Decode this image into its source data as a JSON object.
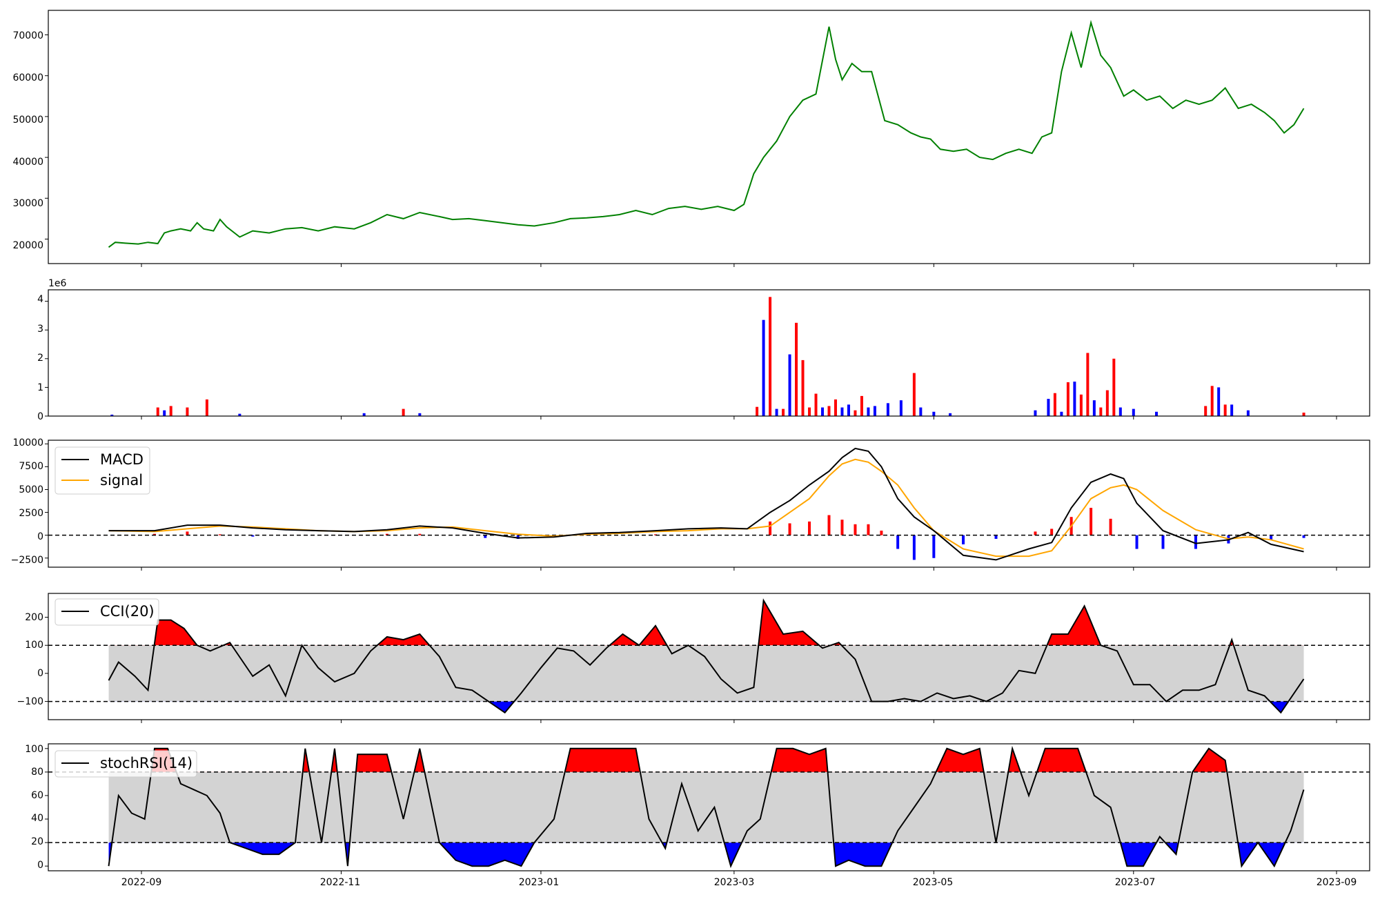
{
  "colors": {
    "price": "#008000",
    "up": "#ff0000",
    "down": "#0000ff",
    "macd": "#000000",
    "signal": "#ffa500",
    "band": "#d3d3d3",
    "frame": "#000000"
  },
  "x_ticks": [
    "2022-09",
    "2022-11",
    "2023-01",
    "2023-03",
    "2023-05",
    "2023-07",
    "2023-09"
  ],
  "chart_data": [
    {
      "type": "line",
      "panel": "price",
      "x_range": [
        "2022-08-01",
        "2023-09-15"
      ],
      "ylim": [
        14000,
        76000
      ],
      "y_ticks": [
        "20000",
        "30000",
        "40000",
        "50000",
        "60000",
        "70000"
      ],
      "series": [
        {
          "color": "#008000",
          "x": [
            "2022-08-22",
            "2022-08-24",
            "2022-08-27",
            "2022-08-31",
            "2022-09-03",
            "2022-09-06",
            "2022-09-08",
            "2022-09-10",
            "2022-09-13",
            "2022-09-16",
            "2022-09-18",
            "2022-09-20",
            "2022-09-23",
            "2022-09-25",
            "2022-09-27",
            "2022-10-01",
            "2022-10-05",
            "2022-10-10",
            "2022-10-15",
            "2022-10-20",
            "2022-10-25",
            "2022-10-30",
            "2022-11-05",
            "2022-11-10",
            "2022-11-15",
            "2022-11-20",
            "2022-11-25",
            "2022-12-01",
            "2022-12-05",
            "2022-12-10",
            "2022-12-15",
            "2022-12-20",
            "2022-12-25",
            "2022-12-30",
            "2023-01-05",
            "2023-01-10",
            "2023-01-15",
            "2023-01-20",
            "2023-01-25",
            "2023-01-30",
            "2023-02-04",
            "2023-02-09",
            "2023-02-14",
            "2023-02-19",
            "2023-02-24",
            "2023-03-01",
            "2023-03-04",
            "2023-03-07",
            "2023-03-10",
            "2023-03-14",
            "2023-03-18",
            "2023-03-22",
            "2023-03-26",
            "2023-03-30",
            "2023-04-01",
            "2023-04-03",
            "2023-04-06",
            "2023-04-09",
            "2023-04-12",
            "2023-04-16",
            "2023-04-20",
            "2023-04-24",
            "2023-04-27",
            "2023-04-30",
            "2023-05-03",
            "2023-05-07",
            "2023-05-11",
            "2023-05-15",
            "2023-05-19",
            "2023-05-23",
            "2023-05-27",
            "2023-05-31",
            "2023-06-03",
            "2023-06-06",
            "2023-06-09",
            "2023-06-12",
            "2023-06-15",
            "2023-06-18",
            "2023-06-21",
            "2023-06-24",
            "2023-06-28",
            "2023-07-01",
            "2023-07-05",
            "2023-07-09",
            "2023-07-13",
            "2023-07-17",
            "2023-07-21",
            "2023-07-25",
            "2023-07-29",
            "2023-08-02",
            "2023-08-06",
            "2023-08-10",
            "2023-08-13",
            "2023-08-16",
            "2023-08-19",
            "2023-08-22"
          ],
          "y": [
            18000,
            19200,
            19000,
            18800,
            19200,
            18900,
            21500,
            22000,
            22500,
            22000,
            24000,
            22500,
            22000,
            24800,
            23000,
            20500,
            22000,
            21500,
            22500,
            22800,
            22000,
            23000,
            22500,
            24000,
            26000,
            25000,
            26500,
            25500,
            24800,
            25000,
            24500,
            24000,
            23500,
            23200,
            24000,
            25000,
            25200,
            25500,
            26000,
            27000,
            26000,
            27500,
            28000,
            27300,
            28000,
            27000,
            28500,
            36000,
            40000,
            44000,
            50000,
            54000,
            55500,
            72000,
            64000,
            59000,
            63000,
            61000,
            61000,
            49000,
            48000,
            46000,
            45000,
            44500,
            42000,
            41500,
            42000,
            40000,
            39500,
            41000,
            42000,
            41000,
            45000,
            46000,
            61000,
            70500,
            62000,
            73000,
            65000,
            62000,
            55000,
            56500,
            54000,
            55000,
            52000,
            54000,
            53000,
            54000,
            57000,
            52000,
            53000,
            51000,
            49000,
            46000,
            48000,
            52000
          ]
        }
      ]
    },
    {
      "type": "bar",
      "panel": "volume",
      "multiplier_label": "1e6",
      "ylim": [
        0,
        4.4
      ],
      "y_ticks": [
        "0",
        "1",
        "2",
        "3",
        "4"
      ],
      "x": [
        "2022-08-23",
        "2022-09-06",
        "2022-09-08",
        "2022-09-10",
        "2022-09-15",
        "2022-09-21",
        "2022-10-01",
        "2022-11-08",
        "2022-11-20",
        "2022-11-25",
        "2023-03-08",
        "2023-03-10",
        "2023-03-12",
        "2023-03-14",
        "2023-03-16",
        "2023-03-18",
        "2023-03-20",
        "2023-03-22",
        "2023-03-24",
        "2023-03-26",
        "2023-03-28",
        "2023-03-30",
        "2023-04-01",
        "2023-04-03",
        "2023-04-05",
        "2023-04-07",
        "2023-04-09",
        "2023-04-11",
        "2023-04-13",
        "2023-04-17",
        "2023-04-21",
        "2023-04-25",
        "2023-04-27",
        "2023-05-01",
        "2023-05-06",
        "2023-06-01",
        "2023-06-05",
        "2023-06-07",
        "2023-06-09",
        "2023-06-11",
        "2023-06-13",
        "2023-06-15",
        "2023-06-17",
        "2023-06-19",
        "2023-06-21",
        "2023-06-23",
        "2023-06-25",
        "2023-06-27",
        "2023-07-01",
        "2023-07-08",
        "2023-07-23",
        "2023-07-25",
        "2023-07-27",
        "2023-07-29",
        "2023-07-31",
        "2023-08-05",
        "2023-08-22"
      ],
      "values": [
        0.05,
        0.3,
        0.2,
        0.35,
        0.3,
        0.58,
        0.08,
        0.1,
        0.25,
        0.1,
        0.32,
        3.35,
        4.15,
        0.25,
        0.25,
        2.15,
        3.25,
        1.95,
        0.3,
        0.78,
        0.3,
        0.35,
        0.58,
        0.3,
        0.4,
        0.2,
        0.7,
        0.3,
        0.35,
        0.45,
        0.55,
        1.5,
        0.3,
        0.15,
        0.1,
        0.2,
        0.6,
        0.8,
        0.15,
        1.18,
        1.2,
        0.75,
        2.2,
        0.55,
        0.3,
        0.9,
        2.0,
        0.3,
        0.25,
        0.15,
        0.35,
        1.05,
        1.0,
        0.4,
        0.4,
        0.2,
        0.12
      ],
      "colors": [
        "b",
        "r",
        "b",
        "r",
        "r",
        "r",
        "b",
        "b",
        "r",
        "b",
        "r",
        "b",
        "r",
        "b",
        "r",
        "b",
        "r",
        "r",
        "r",
        "r",
        "b",
        "r",
        "r",
        "b",
        "b",
        "r",
        "r",
        "b",
        "b",
        "b",
        "b",
        "r",
        "b",
        "b",
        "b",
        "b",
        "b",
        "r",
        "b",
        "r",
        "b",
        "r",
        "r",
        "b",
        "r",
        "r",
        "r",
        "b",
        "b",
        "b",
        "r",
        "r",
        "b",
        "r",
        "b",
        "b",
        "r"
      ]
    },
    {
      "type": "line",
      "panel": "macd",
      "ylim": [
        -3500,
        10400
      ],
      "y_ticks": [
        "−2500",
        "0",
        "2500",
        "5000",
        "7500",
        "10000"
      ],
      "hline": 0,
      "legend": [
        "MACD",
        "signal"
      ],
      "x": [
        "2022-08-22",
        "2022-09-05",
        "2022-09-15",
        "2022-09-25",
        "2022-10-05",
        "2022-10-15",
        "2022-10-25",
        "2022-11-05",
        "2022-11-15",
        "2022-11-25",
        "2022-12-05",
        "2022-12-15",
        "2022-12-25",
        "2023-01-05",
        "2023-01-15",
        "2023-01-25",
        "2023-02-05",
        "2023-02-15",
        "2023-02-25",
        "2023-03-05",
        "2023-03-12",
        "2023-03-18",
        "2023-03-24",
        "2023-03-30",
        "2023-04-03",
        "2023-04-07",
        "2023-04-11",
        "2023-04-15",
        "2023-04-20",
        "2023-04-25",
        "2023-05-01",
        "2023-05-10",
        "2023-05-20",
        "2023-05-30",
        "2023-06-06",
        "2023-06-12",
        "2023-06-18",
        "2023-06-24",
        "2023-06-28",
        "2023-07-02",
        "2023-07-10",
        "2023-07-20",
        "2023-07-30",
        "2023-08-05",
        "2023-08-12",
        "2023-08-22"
      ],
      "macd": [
        500,
        500,
        1100,
        1100,
        800,
        600,
        500,
        400,
        600,
        1000,
        800,
        200,
        -300,
        -200,
        200,
        300,
        500,
        700,
        800,
        700,
        2500,
        3800,
        5500,
        7000,
        8500,
        9500,
        9200,
        7500,
        4000,
        2000,
        500,
        -2200,
        -2700,
        -1500,
        -800,
        3000,
        5800,
        6700,
        6200,
        3500,
        500,
        -900,
        -500,
        300,
        -1000,
        -1800
      ],
      "signal": [
        500,
        400,
        700,
        1000,
        900,
        700,
        500,
        400,
        500,
        800,
        900,
        500,
        100,
        -100,
        100,
        200,
        400,
        500,
        700,
        700,
        1000,
        2500,
        4000,
        6500,
        7800,
        8300,
        8000,
        7000,
        5500,
        3000,
        500,
        -1500,
        -2300,
        -2300,
        -1700,
        1000,
        4000,
        5200,
        5500,
        5000,
        2700,
        600,
        -400,
        -200,
        -500,
        -1500
      ],
      "histogram_x": [
        "2022-09-05",
        "2022-09-15",
        "2022-09-25",
        "2022-10-05",
        "2022-11-15",
        "2022-11-25",
        "2022-12-15",
        "2022-12-25",
        "2023-01-15",
        "2023-02-05",
        "2023-03-12",
        "2023-03-18",
        "2023-03-24",
        "2023-03-30",
        "2023-04-03",
        "2023-04-07",
        "2023-04-11",
        "2023-04-15",
        "2023-04-20",
        "2023-04-25",
        "2023-05-01",
        "2023-05-10",
        "2023-05-20",
        "2023-06-01",
        "2023-06-06",
        "2023-06-12",
        "2023-06-18",
        "2023-06-24",
        "2023-07-02",
        "2023-07-10",
        "2023-07-20",
        "2023-07-30",
        "2023-08-12",
        "2023-08-22"
      ],
      "histogram": [
        150,
        400,
        100,
        -150,
        150,
        150,
        -300,
        -400,
        100,
        100,
        1500,
        1300,
        1500,
        2200,
        1700,
        1200,
        1200,
        500,
        -1500,
        -2700,
        -2500,
        -1000,
        -400,
        400,
        700,
        2000,
        3000,
        1800,
        -1500,
        -1500,
        -1500,
        -900,
        -500,
        -300
      ]
    },
    {
      "type": "line",
      "panel": "cci",
      "ylim": [
        -165,
        285
      ],
      "y_ticks": [
        "−100",
        "0",
        "100",
        "200"
      ],
      "hlines": [
        100,
        -100
      ],
      "legend": [
        "CCI(20)"
      ],
      "x": [
        "2022-08-22",
        "2022-08-25",
        "2022-08-30",
        "2022-09-03",
        "2022-09-06",
        "2022-09-10",
        "2022-09-14",
        "2022-09-18",
        "2022-09-22",
        "2022-09-28",
        "2022-10-05",
        "2022-10-10",
        "2022-10-15",
        "2022-10-20",
        "2022-10-25",
        "2022-10-30",
        "2022-11-05",
        "2022-11-10",
        "2022-11-15",
        "2022-11-20",
        "2022-11-25",
        "2022-12-01",
        "2022-12-06",
        "2022-12-11",
        "2022-12-16",
        "2022-12-21",
        "2022-12-26",
        "2023-01-01",
        "2023-01-06",
        "2023-01-11",
        "2023-01-16",
        "2023-01-21",
        "2023-01-26",
        "2023-01-31",
        "2023-02-05",
        "2023-02-10",
        "2023-02-15",
        "2023-02-20",
        "2023-02-25",
        "2023-03-02",
        "2023-03-07",
        "2023-03-10",
        "2023-03-16",
        "2023-03-22",
        "2023-03-28",
        "2023-04-02",
        "2023-04-07",
        "2023-04-12",
        "2023-04-17",
        "2023-04-22",
        "2023-04-27",
        "2023-05-02",
        "2023-05-07",
        "2023-05-12",
        "2023-05-17",
        "2023-05-22",
        "2023-05-27",
        "2023-06-01",
        "2023-06-06",
        "2023-06-11",
        "2023-06-16",
        "2023-06-21",
        "2023-06-26",
        "2023-07-01",
        "2023-07-06",
        "2023-07-11",
        "2023-07-16",
        "2023-07-21",
        "2023-07-26",
        "2023-07-31",
        "2023-08-05",
        "2023-08-10",
        "2023-08-15",
        "2023-08-22"
      ],
      "y": [
        -25,
        40,
        -10,
        -60,
        190,
        190,
        160,
        100,
        80,
        110,
        -10,
        30,
        -80,
        100,
        20,
        -30,
        0,
        80,
        130,
        120,
        140,
        60,
        -50,
        -60,
        -100,
        -140,
        -70,
        20,
        90,
        80,
        30,
        90,
        140,
        100,
        170,
        70,
        100,
        60,
        -20,
        -70,
        -50,
        260,
        140,
        150,
        90,
        110,
        50,
        -100,
        -100,
        -90,
        -100,
        -70,
        -90,
        -80,
        -100,
        -70,
        10,
        0,
        140,
        140,
        240,
        100,
        80,
        -40,
        -40,
        -100,
        -60,
        -60,
        -40,
        120,
        -60,
        -80,
        -140,
        -20
      ]
    },
    {
      "type": "line",
      "panel": "stochrsi",
      "ylim": [
        -4,
        104
      ],
      "y_ticks": [
        "0",
        "20",
        "40",
        "60",
        "80",
        "100"
      ],
      "hlines": [
        80,
        20
      ],
      "legend": [
        "stochRSI(14)"
      ],
      "x": [
        "2022-08-22",
        "2022-08-25",
        "2022-08-29",
        "2022-09-02",
        "2022-09-05",
        "2022-09-09",
        "2022-09-13",
        "2022-09-17",
        "2022-09-21",
        "2022-09-25",
        "2022-09-28",
        "2022-10-03",
        "2022-10-08",
        "2022-10-13",
        "2022-10-18",
        "2022-10-21",
        "2022-10-26",
        "2022-10-30",
        "2022-11-03",
        "2022-11-06",
        "2022-11-10",
        "2022-11-15",
        "2022-11-20",
        "2022-11-25",
        "2022-12-01",
        "2022-12-06",
        "2022-12-11",
        "2022-12-16",
        "2022-12-21",
        "2022-12-26",
        "2022-12-30",
        "2023-01-05",
        "2023-01-10",
        "2023-01-15",
        "2023-01-20",
        "2023-01-25",
        "2023-01-30",
        "2023-02-03",
        "2023-02-08",
        "2023-02-13",
        "2023-02-18",
        "2023-02-23",
        "2023-02-28",
        "2023-03-05",
        "2023-03-09",
        "2023-03-14",
        "2023-03-19",
        "2023-03-24",
        "2023-03-29",
        "2023-04-01",
        "2023-04-05",
        "2023-04-10",
        "2023-04-15",
        "2023-04-20",
        "2023-04-25",
        "2023-04-30",
        "2023-05-05",
        "2023-05-10",
        "2023-05-15",
        "2023-05-20",
        "2023-05-25",
        "2023-05-30",
        "2023-06-04",
        "2023-06-09",
        "2023-06-14",
        "2023-06-19",
        "2023-06-24",
        "2023-06-29",
        "2023-07-04",
        "2023-07-09",
        "2023-07-14",
        "2023-07-19",
        "2023-07-24",
        "2023-07-29",
        "2023-08-03",
        "2023-08-08",
        "2023-08-13",
        "2023-08-18",
        "2023-08-22"
      ],
      "y": [
        0,
        60,
        45,
        40,
        100,
        100,
        70,
        65,
        60,
        45,
        20,
        15,
        10,
        10,
        20,
        100,
        20,
        100,
        0,
        95,
        95,
        95,
        40,
        100,
        20,
        5,
        0,
        0,
        5,
        0,
        20,
        40,
        100,
        100,
        100,
        100,
        100,
        40,
        15,
        70,
        30,
        50,
        0,
        30,
        40,
        100,
        100,
        95,
        100,
        0,
        5,
        0,
        0,
        30,
        50,
        70,
        100,
        95,
        100,
        20,
        100,
        60,
        100,
        100,
        100,
        60,
        50,
        0,
        0,
        25,
        10,
        80,
        100,
        90,
        0,
        20,
        0,
        30,
        65
      ]
    }
  ]
}
